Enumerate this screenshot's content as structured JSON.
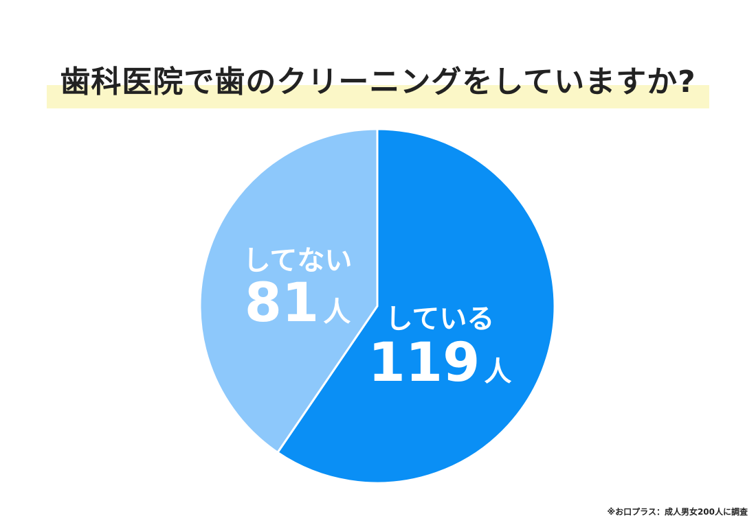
{
  "chart_data": {
    "type": "pie",
    "title": "歯科医院で歯のクリーニングをしていますか?",
    "unit": "人",
    "slices": [
      {
        "label": "している",
        "value": 119,
        "color": "#0a8ff5"
      },
      {
        "label": "してない",
        "value": 81,
        "color": "#8dc8fb"
      }
    ],
    "start": "12 o'clock",
    "direction": "clockwise",
    "legend": "none",
    "highlight_color": "#fbf7c7"
  },
  "source_note": "※お口プラス：成人男女200人に調査"
}
